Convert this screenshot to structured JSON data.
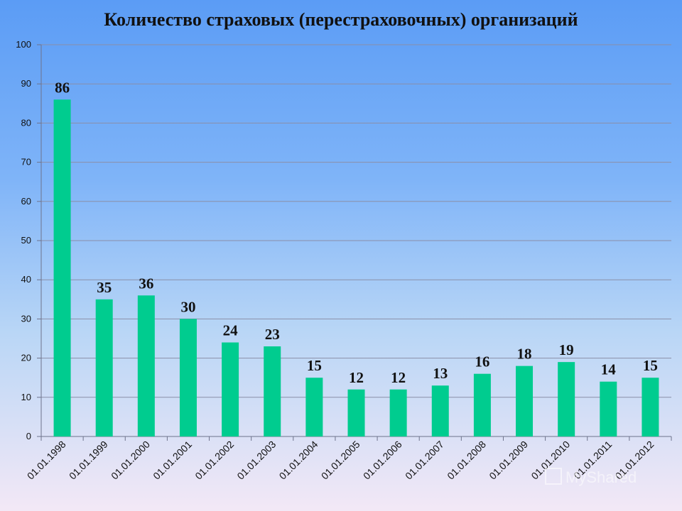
{
  "chart_data": {
    "type": "bar",
    "title": "Количество страховых (перестраховочных) организаций",
    "xlabel": "",
    "ylabel": "",
    "categories": [
      "01.01.1998",
      "01.01.1999",
      "01.01.2000",
      "01.01.2001",
      "01.01.2002",
      "01.01.2003",
      "01.01.2004",
      "01.01.2005",
      "01.01.2006",
      "01.01.2007",
      "01.01.2008",
      "01.01.2009",
      "01.01.2010",
      "01.01.2011",
      "01.01.2012"
    ],
    "values": [
      86,
      35,
      36,
      30,
      24,
      23,
      15,
      12,
      12,
      13,
      16,
      18,
      19,
      14,
      15
    ],
    "ylim": [
      0,
      100
    ],
    "yticks": [
      0,
      10,
      20,
      30,
      40,
      50,
      60,
      70,
      80,
      90,
      100
    ],
    "grid": true,
    "bar_color": "#00cc8f",
    "data_labels": true
  },
  "watermark": "MyShared"
}
